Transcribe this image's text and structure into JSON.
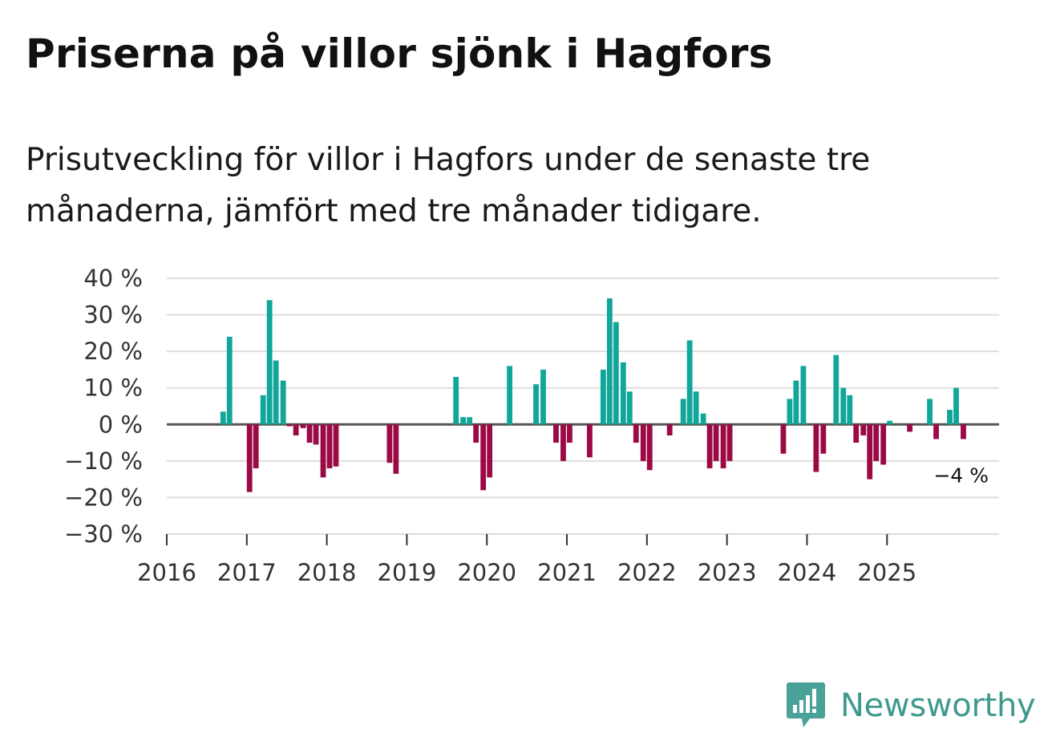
{
  "title": "Priserna på villor sjönk i Hagfors",
  "subtitle": "Prisutveckling för villor i Hagfors under de senaste tre månaderna, jämfört med tre månader tidigare.",
  "brand": "Newsworthy",
  "colors": {
    "positive": "#10a69a",
    "negative": "#9b0a45",
    "grid": "#dddddd",
    "zero": "#555555"
  },
  "chart_data": {
    "type": "bar",
    "title": "Priserna på villor sjönk i Hagfors",
    "ylabel": "",
    "xlabel": "",
    "ylim": [
      -30,
      40
    ],
    "yticks": [
      40,
      30,
      20,
      10,
      0,
      -10,
      -20,
      -30
    ],
    "ytick_labels": [
      "40 %",
      "30 %",
      "20 %",
      "10 %",
      "0 %",
      "−10 %",
      "−20 %",
      "−30 %"
    ],
    "xticks": [
      "2016",
      "2017",
      "2018",
      "2019",
      "2020",
      "2021",
      "2022",
      "2023",
      "2024",
      "2025"
    ],
    "x_start": 2016.0,
    "x_end": 2026.4,
    "bar_step": 0.0833,
    "end_label": "−4 %",
    "series": [
      {
        "name": "Prisutveckling",
        "x": [
          2016.67,
          2016.75,
          2017.0,
          2017.08,
          2017.17,
          2017.25,
          2017.33,
          2017.42,
          2017.5,
          2017.58,
          2017.67,
          2017.75,
          2017.83,
          2017.92,
          2018.0,
          2018.08,
          2018.75,
          2018.83,
          2019.58,
          2019.67,
          2019.75,
          2019.83,
          2019.92,
          2020.0,
          2020.25,
          2020.58,
          2020.67,
          2020.83,
          2020.92,
          2021.0,
          2021.25,
          2021.42,
          2021.5,
          2021.58,
          2021.67,
          2021.75,
          2021.83,
          2021.92,
          2022.0,
          2022.25,
          2022.42,
          2022.5,
          2022.58,
          2022.67,
          2022.75,
          2022.83,
          2022.92,
          2023.0,
          2023.67,
          2023.75,
          2023.83,
          2023.92,
          2024.08,
          2024.17,
          2024.33,
          2024.42,
          2024.5,
          2024.58,
          2024.67,
          2024.75,
          2024.83,
          2024.92,
          2025.0,
          2025.25,
          2025.5,
          2025.58,
          2025.75,
          2025.83,
          2025.92
        ],
        "values": [
          3.5,
          24,
          -18.5,
          -12,
          8,
          34,
          17.5,
          12,
          -0.5,
          -3,
          -1,
          -5,
          -5.5,
          -14.5,
          -12,
          -11.5,
          -10.5,
          -13.5,
          13,
          2,
          2,
          -5,
          -18,
          -14.5,
          16,
          11,
          15,
          -5,
          -10,
          -5,
          -9,
          15,
          34.5,
          28,
          17,
          9,
          -5,
          -10,
          -12.5,
          -3,
          7,
          23,
          9,
          3,
          -12,
          -10,
          -12,
          -10,
          -8,
          7,
          12,
          16,
          -13,
          -8,
          19,
          10,
          8,
          -5,
          -3,
          -15,
          -10,
          -11,
          1,
          -2,
          7,
          -4,
          4,
          10,
          -4
        ]
      }
    ]
  }
}
